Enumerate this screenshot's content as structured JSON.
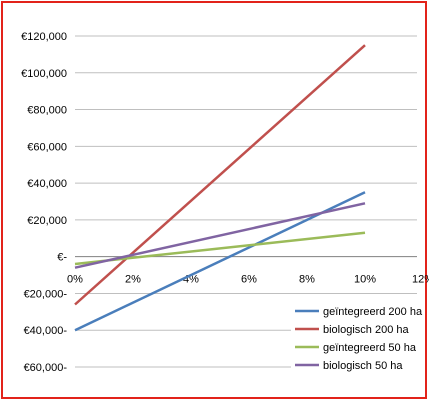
{
  "chart_data": {
    "type": "line",
    "title": "",
    "xlabel": "",
    "ylabel": "",
    "x": [
      0,
      10
    ],
    "x_tick_labels": [
      "0%",
      "2%",
      "4%",
      "6%",
      "8%",
      "10%",
      "12%"
    ],
    "x_ticks": [
      0,
      2,
      4,
      6,
      8,
      10,
      12
    ],
    "y_tick_labels": [
      "€120,000",
      "€100,000",
      "€80,000",
      "€60,000",
      "€40,000",
      "€20,000",
      "€-",
      "€20,000-",
      "€40,000-",
      "€60,000-"
    ],
    "y_ticks": [
      120000,
      100000,
      80000,
      60000,
      40000,
      20000,
      0,
      -20000,
      -40000,
      -60000
    ],
    "xlim": [
      0,
      12
    ],
    "ylim": [
      -60000,
      120000
    ],
    "grid": true,
    "legend_position": "bottom-right",
    "series": [
      {
        "name": "geïntegreerd 200 ha",
        "color": "#4a7ebb",
        "x": [
          0,
          10
        ],
        "values": [
          -40000,
          35000
        ]
      },
      {
        "name": "biologisch 200 ha",
        "color": "#c0504d",
        "x": [
          0,
          10
        ],
        "values": [
          -26000,
          115000
        ]
      },
      {
        "name": "geïntegreerd 50 ha",
        "color": "#9bbb59",
        "x": [
          0,
          10
        ],
        "values": [
          -4000,
          13000
        ]
      },
      {
        "name": "biologisch 50 ha",
        "color": "#8064a2",
        "x": [
          0,
          10
        ],
        "values": [
          -6000,
          29000
        ]
      }
    ]
  }
}
